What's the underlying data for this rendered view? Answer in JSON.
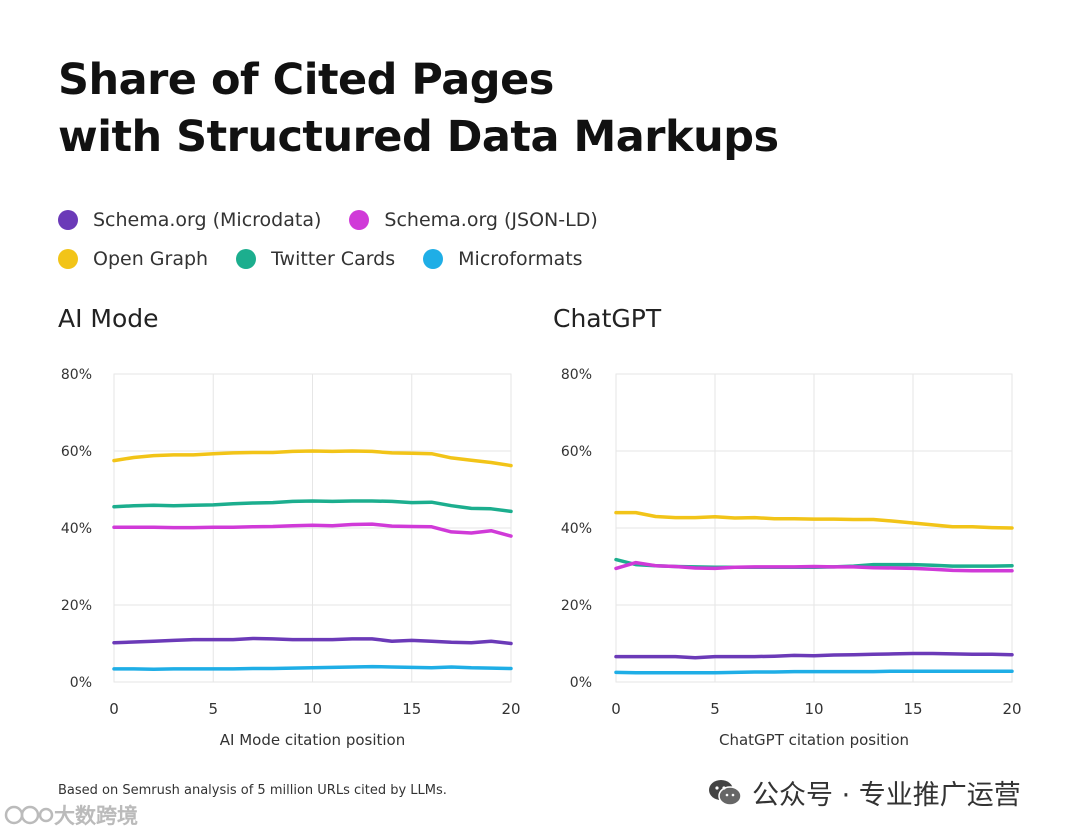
{
  "title": {
    "line1": "Share of Cited Pages",
    "line2": "with Structured Data Markups"
  },
  "legend": [
    {
      "label": "Schema.org (Microdata)",
      "color": "#6b3ab8"
    },
    {
      "label": "Schema.org (JSON-LD)",
      "color": "#d03ad8"
    },
    {
      "label": "Open Graph",
      "color": "#f2c418"
    },
    {
      "label": "Twitter Cards",
      "color": "#1cae8e"
    },
    {
      "label": "Microformats",
      "color": "#1faee6"
    }
  ],
  "chart_data": [
    {
      "type": "line",
      "title": "AI Mode",
      "xlabel": "AI Mode citation position",
      "ylabel": "",
      "xlim": [
        0,
        20
      ],
      "ylim": [
        0,
        80
      ],
      "xticks": [
        "0",
        "5",
        "10",
        "15",
        "20"
      ],
      "yticks": [
        "0%",
        "20%",
        "40%",
        "60%",
        "80%"
      ],
      "x": [
        0,
        1,
        2,
        3,
        4,
        5,
        6,
        7,
        8,
        9,
        10,
        11,
        12,
        13,
        14,
        15,
        16,
        17,
        18,
        19,
        20
      ],
      "series": [
        {
          "name": "Open Graph",
          "color": "#f2c418",
          "values": [
            57.5,
            58.3,
            58.8,
            59.0,
            59.0,
            59.3,
            59.5,
            59.6,
            59.6,
            59.9,
            60.0,
            59.9,
            60.0,
            59.9,
            59.5,
            59.4,
            59.3,
            58.2,
            57.6,
            57.0,
            56.2
          ]
        },
        {
          "name": "Twitter Cards",
          "color": "#1cae8e",
          "values": [
            45.5,
            45.8,
            45.9,
            45.8,
            45.9,
            46.0,
            46.3,
            46.5,
            46.6,
            46.9,
            47.0,
            46.9,
            47.0,
            47.0,
            46.9,
            46.6,
            46.7,
            45.8,
            45.1,
            45.0,
            44.3
          ]
        },
        {
          "name": "Schema.org (JSON-LD)",
          "color": "#d03ad8",
          "values": [
            40.2,
            40.2,
            40.2,
            40.1,
            40.1,
            40.2,
            40.2,
            40.3,
            40.4,
            40.6,
            40.7,
            40.6,
            40.9,
            41.0,
            40.5,
            40.4,
            40.3,
            39.0,
            38.7,
            39.3,
            37.9
          ]
        },
        {
          "name": "Schema.org (Microdata)",
          "color": "#6b3ab8",
          "values": [
            10.2,
            10.4,
            10.6,
            10.8,
            11.0,
            11.0,
            11.0,
            11.3,
            11.2,
            11.0,
            11.0,
            11.0,
            11.2,
            11.2,
            10.6,
            10.8,
            10.6,
            10.3,
            10.2,
            10.6,
            10.0
          ]
        },
        {
          "name": "Microformats",
          "color": "#1faee6",
          "values": [
            3.4,
            3.4,
            3.3,
            3.4,
            3.4,
            3.4,
            3.4,
            3.5,
            3.5,
            3.6,
            3.7,
            3.8,
            3.9,
            4.0,
            3.9,
            3.8,
            3.7,
            3.9,
            3.7,
            3.6,
            3.5
          ]
        }
      ]
    },
    {
      "type": "line",
      "title": "ChatGPT",
      "xlabel": "ChatGPT citation position",
      "ylabel": "",
      "xlim": [
        0,
        20
      ],
      "ylim": [
        0,
        80
      ],
      "xticks": [
        "0",
        "5",
        "10",
        "15",
        "20"
      ],
      "yticks": [
        "0%",
        "20%",
        "40%",
        "60%",
        "80%"
      ],
      "x": [
        0,
        1,
        2,
        3,
        4,
        5,
        6,
        7,
        8,
        9,
        10,
        11,
        12,
        13,
        14,
        15,
        16,
        17,
        18,
        19,
        20
      ],
      "series": [
        {
          "name": "Open Graph",
          "color": "#f2c418",
          "values": [
            44.0,
            44.0,
            43.0,
            42.7,
            42.7,
            42.9,
            42.6,
            42.7,
            42.4,
            42.4,
            42.3,
            42.3,
            42.2,
            42.2,
            41.8,
            41.3,
            40.8,
            40.3,
            40.3,
            40.1,
            40.0
          ]
        },
        {
          "name": "Twitter Cards",
          "color": "#1cae8e",
          "values": [
            31.8,
            30.5,
            30.2,
            30.0,
            29.9,
            29.8,
            29.8,
            29.8,
            29.8,
            29.8,
            29.8,
            29.9,
            30.1,
            30.5,
            30.5,
            30.5,
            30.3,
            30.1,
            30.1,
            30.1,
            30.2
          ]
        },
        {
          "name": "Schema.org (JSON-LD)",
          "color": "#d03ad8",
          "values": [
            29.5,
            31.0,
            30.2,
            30.0,
            29.6,
            29.5,
            29.8,
            29.9,
            29.9,
            29.9,
            30.0,
            29.9,
            29.9,
            29.7,
            29.6,
            29.5,
            29.3,
            29.0,
            28.9,
            28.9,
            28.9
          ]
        },
        {
          "name": "Schema.org (Microdata)",
          "color": "#6b3ab8",
          "values": [
            6.6,
            6.6,
            6.6,
            6.6,
            6.3,
            6.6,
            6.6,
            6.6,
            6.7,
            6.9,
            6.8,
            7.0,
            7.1,
            7.2,
            7.3,
            7.4,
            7.4,
            7.3,
            7.2,
            7.2,
            7.1
          ]
        },
        {
          "name": "Microformats",
          "color": "#1faee6",
          "values": [
            2.5,
            2.4,
            2.4,
            2.4,
            2.4,
            2.4,
            2.5,
            2.6,
            2.6,
            2.7,
            2.7,
            2.7,
            2.7,
            2.7,
            2.8,
            2.8,
            2.8,
            2.8,
            2.8,
            2.8,
            2.8
          ]
        }
      ]
    }
  ],
  "footnote": "Based on Semrush analysis of 5 million URLs cited by LLMs.",
  "watermark": {
    "right": "公众号 · 专业推广运营",
    "left": "大数跨境"
  }
}
